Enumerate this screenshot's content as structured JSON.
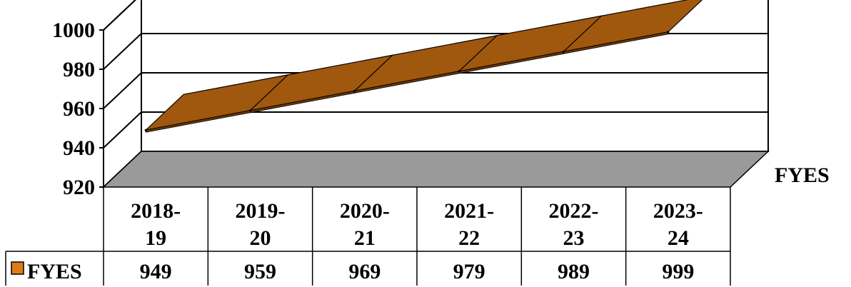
{
  "chart_data": {
    "type": "line",
    "style": "3d-ribbon",
    "categories": [
      [
        "2018-",
        "19"
      ],
      [
        "2019-",
        "20"
      ],
      [
        "2020-",
        "21"
      ],
      [
        "2021-",
        "22"
      ],
      [
        "2022-",
        "23"
      ],
      [
        "2023-",
        "24"
      ]
    ],
    "series": [
      {
        "name": "FYES",
        "values": [
          949,
          959,
          969,
          979,
          989,
          999
        ]
      }
    ],
    "ylim": [
      920,
      1000
    ],
    "yticks": [
      920,
      940,
      960,
      980,
      1000
    ],
    "series_label": "FYES",
    "data_table": true,
    "grid": true,
    "colors": {
      "ribbon_top": "#a0580e",
      "ribbon_front": "#6b3a07",
      "floor": "#9a9a9a",
      "legend_key": "#e07b18"
    }
  }
}
